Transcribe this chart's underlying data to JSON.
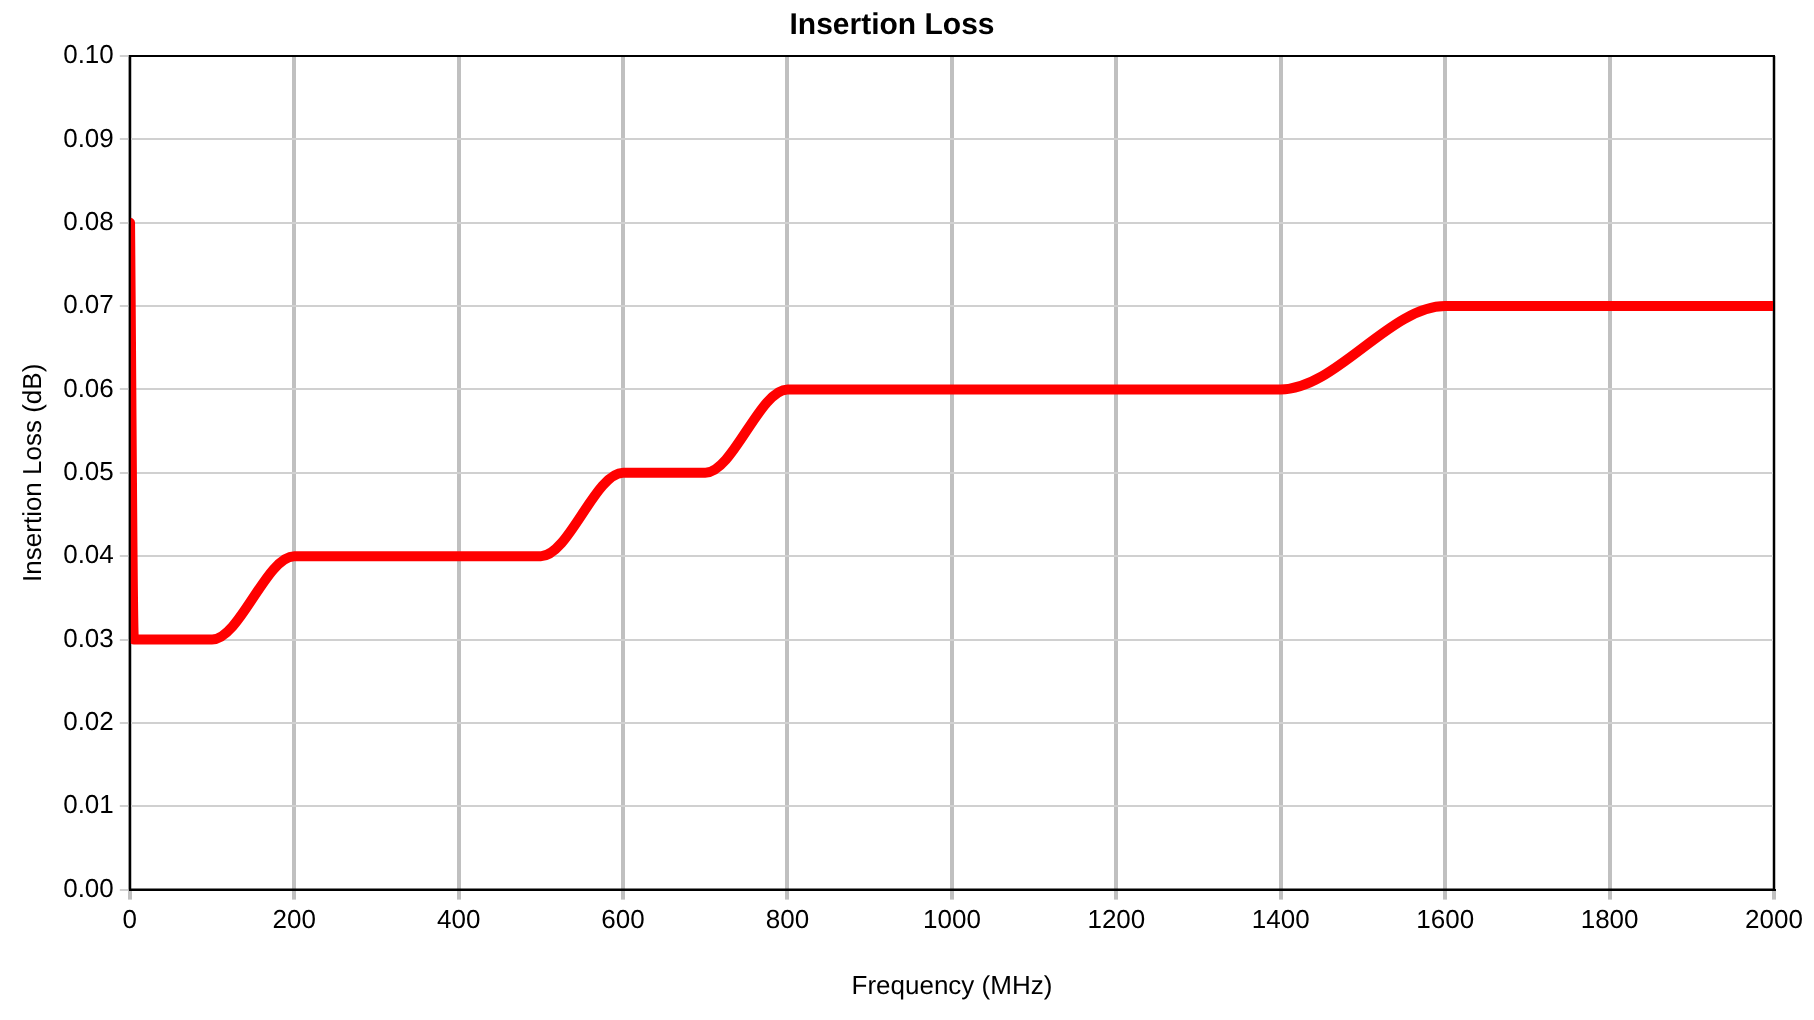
{
  "chart_data": {
    "type": "line",
    "title": "Insertion Loss",
    "xlabel": "Frequency (MHz)",
    "ylabel": "Insertion Loss (dB)",
    "x": [
      0.3,
      5,
      50,
      100,
      200,
      300,
      400,
      500,
      600,
      700,
      800,
      900,
      1000,
      1200,
      1400,
      1600,
      1800,
      2000
    ],
    "series": [
      {
        "color": "#ff0000",
        "values": [
          0.08,
          0.03,
          0.03,
          0.03,
          0.04,
          0.04,
          0.04,
          0.04,
          0.05,
          0.05,
          0.06,
          0.06,
          0.06,
          0.06,
          0.06,
          0.07,
          0.07,
          0.07
        ]
      }
    ],
    "xlim": [
      0,
      2000
    ],
    "xticks": [
      0,
      200,
      400,
      600,
      800,
      1000,
      1200,
      1400,
      1600,
      1800,
      2000
    ],
    "ylim": [
      0,
      0.1
    ],
    "yticks": [
      {
        "value": 0,
        "label": "0.00"
      },
      0.01,
      0.02,
      0.03,
      0.04,
      0.05,
      0.06,
      0.07,
      0.08,
      0.09,
      {
        "value": 0.1,
        "label": "0.10"
      }
    ],
    "grid": true,
    "legend": false,
    "marker": "none",
    "line_style": "solid"
  }
}
